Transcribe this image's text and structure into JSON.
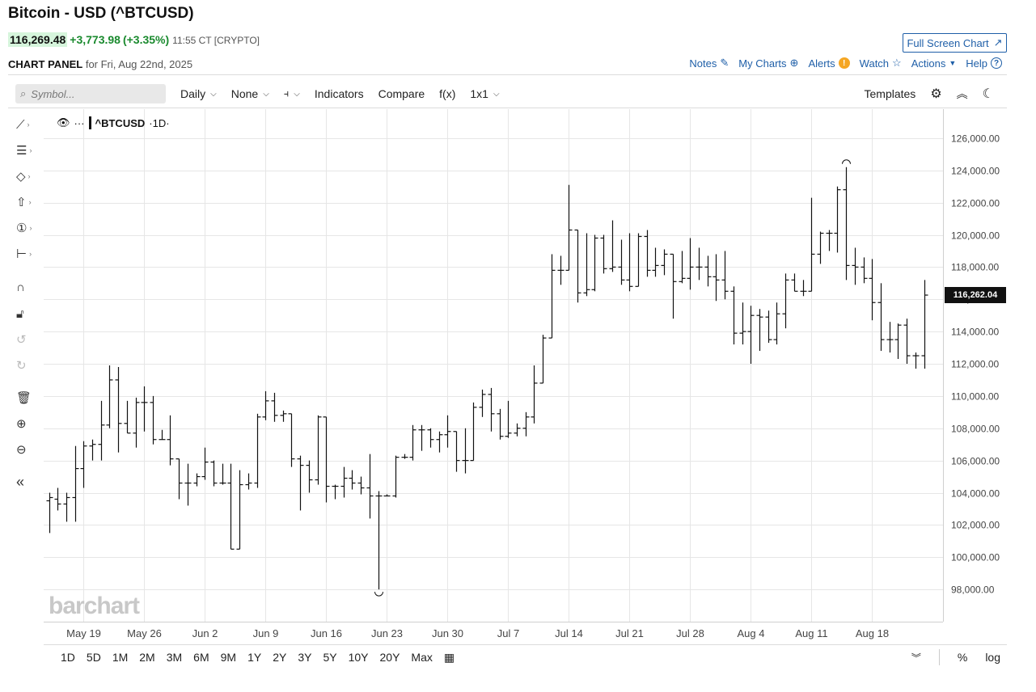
{
  "header": {
    "title": "Bitcoin - USD (^BTCUSD)",
    "last": "116,269.48",
    "change": "+3,773.98",
    "change_pct": "(+3.35%)",
    "time": "11:55 CT [CRYPTO]",
    "fullscreen_label": "Full Screen Chart",
    "panel_label": "CHART PANEL",
    "panel_date": "for Fri, Aug 22nd, 2025"
  },
  "links": {
    "notes": "Notes",
    "my_charts": "My Charts",
    "alerts": "Alerts",
    "watch": "Watch",
    "actions": "Actions",
    "help": "Help"
  },
  "toolbar": {
    "search_placeholder": "Symbol...",
    "period": "Daily",
    "overlay": "None",
    "indicators": "Indicators",
    "compare": "Compare",
    "fx": "f(x)",
    "layout": "1x1",
    "templates": "Templates"
  },
  "legend": {
    "symbol": "^BTCUSD",
    "interval": "·1D·",
    "dots": "···"
  },
  "watermark": "barchart",
  "bottom": {
    "ranges": [
      "1D",
      "5D",
      "1M",
      "2M",
      "3M",
      "6M",
      "9M",
      "1Y",
      "2Y",
      "3Y",
      "5Y",
      "10Y",
      "20Y",
      "Max"
    ],
    "percent": "%",
    "log": "log"
  },
  "colors": {
    "accent": "#1f5fa8",
    "positive": "#1a8a2e",
    "bars": "#111111"
  },
  "chart_data": {
    "type": "ohlc",
    "last_price_label": "116,262.04",
    "last_price": 116262.04,
    "y_axis": {
      "min": 96000,
      "max": 127800,
      "ticks": [
        98000,
        100000,
        102000,
        104000,
        106000,
        108000,
        110000,
        112000,
        114000,
        116000,
        118000,
        120000,
        122000,
        124000,
        126000
      ],
      "tick_labels": [
        "98,000.00",
        "100,000.00",
        "102,000.00",
        "104,000.00",
        "106,000.00",
        "108,000.00",
        "110,000.00",
        "112,000.00",
        "114,000.00",
        "116,000.00",
        "118,000.00",
        "120,000.00",
        "122,000.00",
        "124,000.00",
        "126,000.00"
      ]
    },
    "x_axis": {
      "tick_labels": [
        "May 19",
        "May 26",
        "Jun 2",
        "Jun 9",
        "Jun 16",
        "Jun 23",
        "Jun 30",
        "Jul 7",
        "Jul 14",
        "Jul 21",
        "Jul 28",
        "Aug 4",
        "Aug 11",
        "Aug 18"
      ],
      "tick_index": [
        4,
        11,
        18,
        25,
        32,
        39,
        46,
        53,
        60,
        67,
        74,
        81,
        88,
        95
      ]
    },
    "grid": true,
    "bars": [
      {
        "o": 103500,
        "h": 104000,
        "l": 101500,
        "c": 103700
      },
      {
        "o": 103600,
        "h": 104300,
        "l": 102900,
        "c": 103300
      },
      {
        "o": 103300,
        "h": 104000,
        "l": 102200,
        "c": 103700
      },
      {
        "o": 103700,
        "h": 106900,
        "l": 102200,
        "c": 105500
      },
      {
        "o": 105500,
        "h": 107200,
        "l": 104300,
        "c": 106900
      },
      {
        "o": 106900,
        "h": 107300,
        "l": 106000,
        "c": 107000
      },
      {
        "o": 107000,
        "h": 109700,
        "l": 106000,
        "c": 108200
      },
      {
        "o": 108200,
        "h": 111900,
        "l": 108000,
        "c": 111000
      },
      {
        "o": 111000,
        "h": 111800,
        "l": 106500,
        "c": 108300
      },
      {
        "o": 108300,
        "h": 109700,
        "l": 107700,
        "c": 107700
      },
      {
        "o": 107700,
        "h": 109900,
        "l": 106800,
        "c": 109600
      },
      {
        "o": 109600,
        "h": 110600,
        "l": 107800,
        "c": 109600
      },
      {
        "o": 109600,
        "h": 110000,
        "l": 107000,
        "c": 107300
      },
      {
        "o": 107300,
        "h": 107900,
        "l": 107300,
        "c": 107300
      },
      {
        "o": 107300,
        "h": 108800,
        "l": 105700,
        "c": 106100
      },
      {
        "o": 106100,
        "h": 106100,
        "l": 103600,
        "c": 104600
      },
      {
        "o": 104600,
        "h": 105800,
        "l": 103200,
        "c": 104600
      },
      {
        "o": 104600,
        "h": 105200,
        "l": 104400,
        "c": 105000
      },
      {
        "o": 105000,
        "h": 106800,
        "l": 104800,
        "c": 105900
      },
      {
        "o": 105900,
        "h": 106000,
        "l": 104400,
        "c": 104600
      },
      {
        "o": 104600,
        "h": 105800,
        "l": 104500,
        "c": 104600
      },
      {
        "o": 104600,
        "h": 105800,
        "l": 100500,
        "c": 100500
      },
      {
        "o": 100500,
        "h": 105400,
        "l": 100500,
        "c": 104500
      },
      {
        "o": 104500,
        "h": 105200,
        "l": 104200,
        "c": 104600
      },
      {
        "o": 104600,
        "h": 108900,
        "l": 104300,
        "c": 108700
      },
      {
        "o": 108700,
        "h": 110300,
        "l": 108500,
        "c": 109700
      },
      {
        "o": 109700,
        "h": 110200,
        "l": 108400,
        "c": 108800
      },
      {
        "o": 108800,
        "h": 109100,
        "l": 108400,
        "c": 108900
      },
      {
        "o": 108900,
        "h": 108900,
        "l": 105600,
        "c": 106100
      },
      {
        "o": 106100,
        "h": 106300,
        "l": 102900,
        "c": 105700
      },
      {
        "o": 105700,
        "h": 106000,
        "l": 104000,
        "c": 104800
      },
      {
        "o": 104800,
        "h": 108800,
        "l": 104500,
        "c": 108700
      },
      {
        "o": 108700,
        "h": 108700,
        "l": 103400,
        "c": 104400
      },
      {
        "o": 104400,
        "h": 104500,
        "l": 103600,
        "c": 104400
      },
      {
        "o": 104400,
        "h": 105600,
        "l": 103700,
        "c": 104900
      },
      {
        "o": 104900,
        "h": 105400,
        "l": 104200,
        "c": 104600
      },
      {
        "o": 104600,
        "h": 105000,
        "l": 103900,
        "c": 104300
      },
      {
        "o": 104300,
        "h": 106400,
        "l": 102400,
        "c": 103800
      },
      {
        "o": 103800,
        "h": 104100,
        "l": 98000,
        "c": 103800
      },
      {
        "o": 103800,
        "h": 103900,
        "l": 103800,
        "c": 103800
      },
      {
        "o": 103800,
        "h": 106300,
        "l": 103700,
        "c": 106200
      },
      {
        "o": 106200,
        "h": 106400,
        "l": 106100,
        "c": 106200
      },
      {
        "o": 106200,
        "h": 108200,
        "l": 106000,
        "c": 107900
      },
      {
        "o": 107900,
        "h": 108200,
        "l": 106600,
        "c": 107900
      },
      {
        "o": 107900,
        "h": 108000,
        "l": 106800,
        "c": 107300
      },
      {
        "o": 107300,
        "h": 107800,
        "l": 106500,
        "c": 107600
      },
      {
        "o": 107600,
        "h": 108800,
        "l": 106800,
        "c": 107800
      },
      {
        "o": 107800,
        "h": 107800,
        "l": 105300,
        "c": 106000
      },
      {
        "o": 106000,
        "h": 108000,
        "l": 105200,
        "c": 106000
      },
      {
        "o": 106000,
        "h": 109600,
        "l": 106000,
        "c": 109300
      },
      {
        "o": 109300,
        "h": 110400,
        "l": 108700,
        "c": 110100
      },
      {
        "o": 110100,
        "h": 110500,
        "l": 107800,
        "c": 108900
      },
      {
        "o": 108900,
        "h": 109200,
        "l": 107300,
        "c": 107500
      },
      {
        "o": 107500,
        "h": 109700,
        "l": 107400,
        "c": 107700
      },
      {
        "o": 107700,
        "h": 108300,
        "l": 107500,
        "c": 108000
      },
      {
        "o": 108000,
        "h": 109000,
        "l": 107500,
        "c": 108700
      },
      {
        "o": 108700,
        "h": 111900,
        "l": 108300,
        "c": 110800
      },
      {
        "o": 110800,
        "h": 113800,
        "l": 110800,
        "c": 113600
      },
      {
        "o": 113600,
        "h": 118800,
        "l": 113600,
        "c": 117800
      },
      {
        "o": 117800,
        "h": 118700,
        "l": 116900,
        "c": 117800
      },
      {
        "o": 117800,
        "h": 123100,
        "l": 117800,
        "c": 120300
      },
      {
        "o": 120300,
        "h": 120300,
        "l": 115800,
        "c": 116400
      },
      {
        "o": 116400,
        "h": 120100,
        "l": 116200,
        "c": 116600
      },
      {
        "o": 116600,
        "h": 120000,
        "l": 116500,
        "c": 119800
      },
      {
        "o": 119800,
        "h": 120000,
        "l": 117600,
        "c": 117900
      },
      {
        "o": 117900,
        "h": 120900,
        "l": 117700,
        "c": 118000
      },
      {
        "o": 118000,
        "h": 119700,
        "l": 116900,
        "c": 117200
      },
      {
        "o": 117200,
        "h": 120100,
        "l": 116500,
        "c": 116800
      },
      {
        "o": 116800,
        "h": 120100,
        "l": 116800,
        "c": 119900
      },
      {
        "o": 119900,
        "h": 120300,
        "l": 117400,
        "c": 117800
      },
      {
        "o": 117800,
        "h": 119200,
        "l": 117400,
        "c": 118100
      },
      {
        "o": 118100,
        "h": 119100,
        "l": 117500,
        "c": 118800
      },
      {
        "o": 118800,
        "h": 118800,
        "l": 114800,
        "c": 117100
      },
      {
        "o": 117100,
        "h": 119000,
        "l": 117000,
        "c": 117300
      },
      {
        "o": 117300,
        "h": 119800,
        "l": 116600,
        "c": 118000
      },
      {
        "o": 118000,
        "h": 119200,
        "l": 117200,
        "c": 118000
      },
      {
        "o": 118000,
        "h": 118700,
        "l": 116800,
        "c": 117400
      },
      {
        "o": 117400,
        "h": 118800,
        "l": 115900,
        "c": 117200
      },
      {
        "o": 117200,
        "h": 119000,
        "l": 116000,
        "c": 116500
      },
      {
        "o": 116500,
        "h": 116800,
        "l": 113200,
        "c": 113900
      },
      {
        "o": 113900,
        "h": 115800,
        "l": 113200,
        "c": 114000
      },
      {
        "o": 114000,
        "h": 115600,
        "l": 112000,
        "c": 115000
      },
      {
        "o": 115000,
        "h": 115400,
        "l": 112800,
        "c": 114900
      },
      {
        "o": 114900,
        "h": 115300,
        "l": 113300,
        "c": 113500
      },
      {
        "o": 113500,
        "h": 115800,
        "l": 113200,
        "c": 115100
      },
      {
        "o": 115100,
        "h": 117600,
        "l": 114200,
        "c": 117200
      },
      {
        "o": 117200,
        "h": 117600,
        "l": 116500,
        "c": 116500
      },
      {
        "o": 116500,
        "h": 117200,
        "l": 116200,
        "c": 116500
      },
      {
        "o": 116500,
        "h": 122300,
        "l": 116500,
        "c": 118800
      },
      {
        "o": 118800,
        "h": 120200,
        "l": 118200,
        "c": 120100
      },
      {
        "o": 120100,
        "h": 120300,
        "l": 119000,
        "c": 120100
      },
      {
        "o": 120100,
        "h": 123000,
        "l": 118900,
        "c": 122800
      },
      {
        "o": 122800,
        "h": 124200,
        "l": 117200,
        "c": 118100
      },
      {
        "o": 118100,
        "h": 119200,
        "l": 116900,
        "c": 118000
      },
      {
        "o": 118000,
        "h": 118600,
        "l": 117000,
        "c": 117300
      },
      {
        "o": 117300,
        "h": 118500,
        "l": 114700,
        "c": 115800
      },
      {
        "o": 115800,
        "h": 117000,
        "l": 112800,
        "c": 113500
      },
      {
        "o": 113500,
        "h": 114600,
        "l": 112700,
        "c": 113500
      },
      {
        "o": 113500,
        "h": 114500,
        "l": 112300,
        "c": 114400
      },
      {
        "o": 114400,
        "h": 114800,
        "l": 112000,
        "c": 112500
      },
      {
        "o": 112500,
        "h": 112700,
        "l": 111700,
        "c": 112500
      },
      {
        "o": 112500,
        "h": 117200,
        "l": 111700,
        "c": 116262
      }
    ],
    "high_marker_index": 92,
    "low_marker_index": 38
  }
}
